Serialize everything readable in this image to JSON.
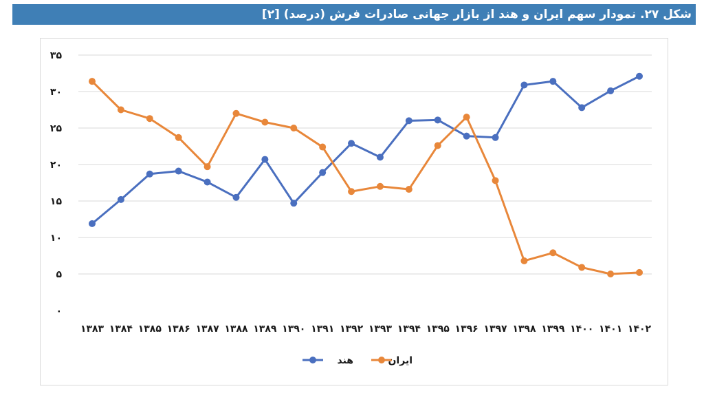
{
  "header": {
    "title": "شکل ۲۷. نمودار سهم ایران و هند از بازار جهانی صادرات فرش (درصد) [۲]"
  },
  "colors": {
    "title_bar": "#3f7fb6",
    "india": "#4a6fbf",
    "iran": "#e8873a",
    "grid": "#d9d9d9"
  },
  "chart_data": {
    "type": "line",
    "title": "",
    "xlabel": "",
    "ylabel": "",
    "ylim": [
      0,
      35
    ],
    "y_ticks": [
      0,
      5,
      10,
      15,
      20,
      25,
      30,
      35
    ],
    "y_tick_labels": [
      "۰",
      "۵",
      "۱۰",
      "۱۵",
      "۲۰",
      "۲۵",
      "۳۰",
      "۳۵"
    ],
    "grid": "horizontal",
    "legend_position": "bottom",
    "categories": [
      "۱۳۸۳",
      "۱۳۸۴",
      "۱۳۸۵",
      "۱۳۸۶",
      "۱۳۸۷",
      "۱۳۸۸",
      "۱۳۸۹",
      "۱۳۹۰",
      "۱۳۹۱",
      "۱۳۹۲",
      "۱۳۹۳",
      "۱۳۹۴",
      "۱۳۹۵",
      "۱۳۹۶",
      "۱۳۹۷",
      "۱۳۹۸",
      "۱۳۹۹",
      "۱۴۰۰",
      "۱۴۰۱",
      "۱۴۰۲"
    ],
    "series": [
      {
        "name": "هند",
        "color": "#4a6fbf",
        "values": [
          11.9,
          15.2,
          18.7,
          19.1,
          17.6,
          15.5,
          20.7,
          14.7,
          18.9,
          22.9,
          21.0,
          26.0,
          26.1,
          23.9,
          23.7,
          30.9,
          31.4,
          27.8,
          30.1,
          32.1
        ]
      },
      {
        "name": "ایران",
        "color": "#e8873a",
        "values": [
          31.4,
          27.5,
          26.3,
          23.7,
          19.7,
          27.0,
          25.8,
          25.0,
          22.4,
          16.3,
          17.0,
          16.6,
          22.6,
          26.5,
          17.8,
          6.8,
          7.9,
          5.9,
          5.0,
          5.2
        ]
      }
    ]
  }
}
